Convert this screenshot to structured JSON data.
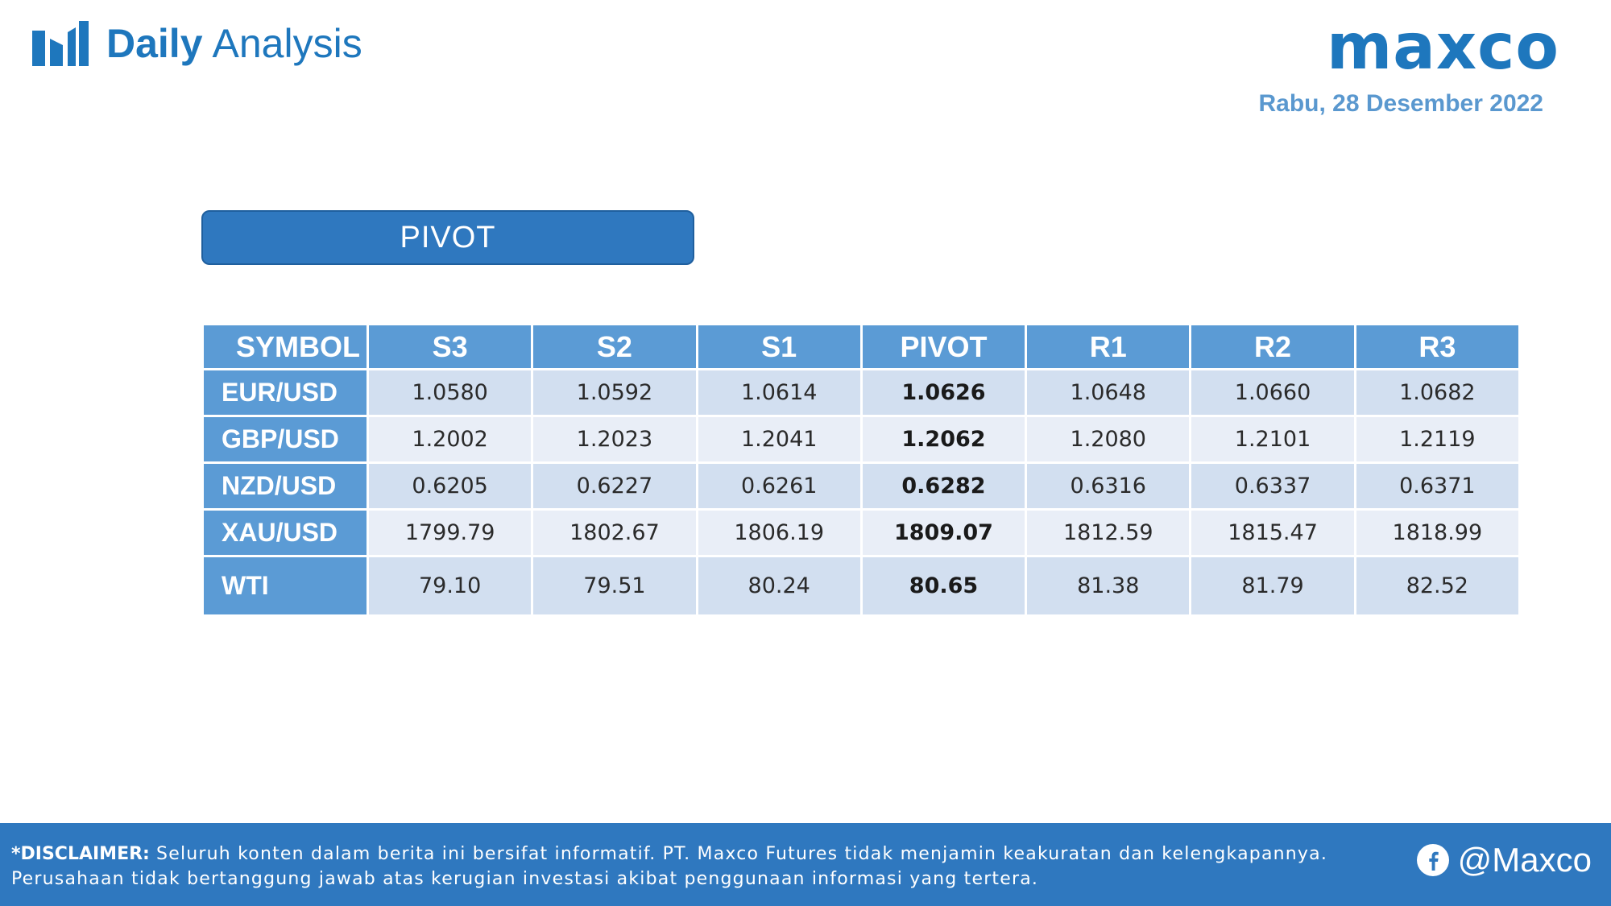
{
  "header": {
    "brand_bold": "Daily",
    "brand_light": "Analysis",
    "brand_icon": "bar-chart-icon",
    "logo_text": "maxco",
    "date": "Rabu, 28 Desember 2022"
  },
  "pivot_title": "PIVOT",
  "table": {
    "columns": [
      "SYMBOL",
      "S3",
      "S2",
      "S1",
      "PIVOT",
      "R1",
      "R2",
      "R3"
    ],
    "rows": [
      {
        "symbol": "EUR/USD",
        "values": [
          "1.0580",
          "1.0592",
          "1.0614",
          "1.0626",
          "1.0648",
          "1.0660",
          "1.0682"
        ]
      },
      {
        "symbol": "GBP/USD",
        "values": [
          "1.2002",
          "1.2023",
          "1.2041",
          "1.2062",
          "1.2080",
          "1.2101",
          "1.2119"
        ]
      },
      {
        "symbol": "NZD/USD",
        "values": [
          "0.6205",
          "0.6227",
          "0.6261",
          "0.6282",
          "0.6316",
          "0.6337",
          "0.6371"
        ]
      },
      {
        "symbol": "XAU/USD",
        "values": [
          "1799.79",
          "1802.67",
          "1806.19",
          "1809.07",
          "1812.59",
          "1815.47",
          "1818.99"
        ]
      },
      {
        "symbol": "WTI",
        "values": [
          "79.10",
          "79.51",
          "80.24",
          "80.65",
          "81.38",
          "81.79",
          "82.52"
        ]
      }
    ]
  },
  "footer": {
    "disclaimer_label": "*DISCLAIMER:",
    "disclaimer_text": "Seluruh konten dalam berita ini bersifat informatif. PT. Maxco Futures tidak menjamin keakuratan dan kelengkapannya. Perusahaan tidak bertanggung jawab atas kerugian investasi akibat penggunaan informasi yang tertera.",
    "social_icon": "facebook-icon",
    "social_handle": "@Maxco"
  },
  "colors": {
    "brand_blue": "#1e77bd",
    "header_cell": "#5b9bd5",
    "row_odd": "#d2dff0",
    "row_even": "#e9eef7",
    "footer": "#2f78bf",
    "date": "#5a98cf"
  }
}
